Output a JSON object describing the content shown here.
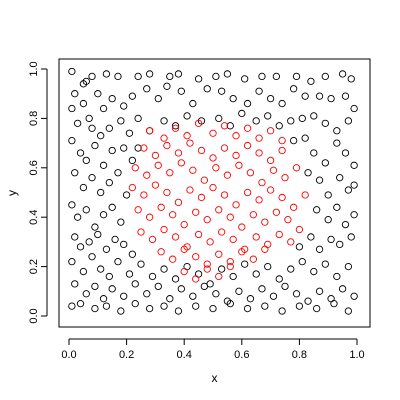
{
  "chart_data": {
    "type": "scatter",
    "xlabel": "x",
    "ylabel": "y",
    "xlim": [
      0,
      1
    ],
    "ylim": [
      0,
      1
    ],
    "x_ticks": [
      "0.0",
      "0.2",
      "0.4",
      "0.6",
      "0.8",
      "1.0"
    ],
    "y_ticks": [
      "0.0",
      "0.2",
      "0.4",
      "0.6",
      "0.8",
      "1.0"
    ],
    "grid": false,
    "legend": "none",
    "marker": "open-circle",
    "series": [
      {
        "color": "#000000",
        "points": [
          [
            0.01,
            0.99
          ],
          [
            0.05,
            0.94
          ],
          [
            0.06,
            0.95
          ],
          [
            0.08,
            0.97
          ],
          [
            0.13,
            0.98
          ],
          [
            0.17,
            0.97
          ],
          [
            0.24,
            0.97
          ],
          [
            0.28,
            0.98
          ],
          [
            0.35,
            0.97
          ],
          [
            0.38,
            0.98
          ],
          [
            0.45,
            0.96
          ],
          [
            0.51,
            0.97
          ],
          [
            0.55,
            0.98
          ],
          [
            0.61,
            0.96
          ],
          [
            0.67,
            0.97
          ],
          [
            0.72,
            0.97
          ],
          [
            0.79,
            0.97
          ],
          [
            0.84,
            0.95
          ],
          [
            0.89,
            0.97
          ],
          [
            0.95,
            0.98
          ],
          [
            0.98,
            0.96
          ],
          [
            0.02,
            0.9
          ],
          [
            0.05,
            0.86
          ],
          [
            0.07,
            0.8
          ],
          [
            0.1,
            0.9
          ],
          [
            0.12,
            0.84
          ],
          [
            0.15,
            0.88
          ],
          [
            0.19,
            0.85
          ],
          [
            0.22,
            0.89
          ],
          [
            0.27,
            0.92
          ],
          [
            0.31,
            0.88
          ],
          [
            0.34,
            0.93
          ],
          [
            0.39,
            0.91
          ],
          [
            0.43,
            0.86
          ],
          [
            0.48,
            0.92
          ],
          [
            0.53,
            0.91
          ],
          [
            0.57,
            0.88
          ],
          [
            0.62,
            0.86
          ],
          [
            0.66,
            0.91
          ],
          [
            0.7,
            0.88
          ],
          [
            0.74,
            0.86
          ],
          [
            0.78,
            0.92
          ],
          [
            0.82,
            0.89
          ],
          [
            0.87,
            0.89
          ],
          [
            0.91,
            0.88
          ],
          [
            0.96,
            0.89
          ],
          [
            0.99,
            0.84
          ],
          [
            0.01,
            0.84
          ],
          [
            0.03,
            0.78
          ],
          [
            0.08,
            0.76
          ],
          [
            0.11,
            0.73
          ],
          [
            0.14,
            0.76
          ],
          [
            0.18,
            0.79
          ],
          [
            0.21,
            0.74
          ],
          [
            0.24,
            0.8
          ],
          [
            0.28,
            0.75
          ],
          [
            0.33,
            0.79
          ],
          [
            0.37,
            0.77
          ],
          [
            0.41,
            0.81
          ],
          [
            0.46,
            0.79
          ],
          [
            0.52,
            0.8
          ],
          [
            0.56,
            0.77
          ],
          [
            0.6,
            0.82
          ],
          [
            0.65,
            0.79
          ],
          [
            0.69,
            0.81
          ],
          [
            0.73,
            0.77
          ],
          [
            0.77,
            0.79
          ],
          [
            0.81,
            0.8
          ],
          [
            0.85,
            0.81
          ],
          [
            0.89,
            0.78
          ],
          [
            0.93,
            0.75
          ],
          [
            0.97,
            0.79
          ],
          [
            0.01,
            0.71
          ],
          [
            0.04,
            0.66
          ],
          [
            0.06,
            0.63
          ],
          [
            0.09,
            0.69
          ],
          [
            0.12,
            0.61
          ],
          [
            0.15,
            0.67
          ],
          [
            0.19,
            0.68
          ],
          [
            0.22,
            0.63
          ],
          [
            0.24,
            0.68
          ],
          [
            0.78,
            0.71
          ],
          [
            0.82,
            0.72
          ],
          [
            0.85,
            0.66
          ],
          [
            0.89,
            0.62
          ],
          [
            0.93,
            0.7
          ],
          [
            0.96,
            0.66
          ],
          [
            0.99,
            0.61
          ],
          [
            0.02,
            0.58
          ],
          [
            0.05,
            0.52
          ],
          [
            0.08,
            0.56
          ],
          [
            0.11,
            0.5
          ],
          [
            0.14,
            0.54
          ],
          [
            0.17,
            0.58
          ],
          [
            0.2,
            0.49
          ],
          [
            0.83,
            0.58
          ],
          [
            0.87,
            0.55
          ],
          [
            0.9,
            0.49
          ],
          [
            0.94,
            0.56
          ],
          [
            0.97,
            0.51
          ],
          [
            0.99,
            0.53
          ],
          [
            0.01,
            0.45
          ],
          [
            0.03,
            0.4
          ],
          [
            0.06,
            0.43
          ],
          [
            0.09,
            0.36
          ],
          [
            0.12,
            0.41
          ],
          [
            0.15,
            0.44
          ],
          [
            0.18,
            0.38
          ],
          [
            0.86,
            0.43
          ],
          [
            0.9,
            0.39
          ],
          [
            0.93,
            0.44
          ],
          [
            0.96,
            0.37
          ],
          [
            0.99,
            0.41
          ],
          [
            0.02,
            0.32
          ],
          [
            0.04,
            0.28
          ],
          [
            0.07,
            0.3
          ],
          [
            0.1,
            0.33
          ],
          [
            0.13,
            0.27
          ],
          [
            0.16,
            0.31
          ],
          [
            0.19,
            0.29
          ],
          [
            0.22,
            0.25
          ],
          [
            0.8,
            0.28
          ],
          [
            0.84,
            0.32
          ],
          [
            0.87,
            0.27
          ],
          [
            0.91,
            0.31
          ],
          [
            0.94,
            0.29
          ],
          [
            0.98,
            0.32
          ],
          [
            0.01,
            0.22
          ],
          [
            0.05,
            0.18
          ],
          [
            0.08,
            0.24
          ],
          [
            0.11,
            0.19
          ],
          [
            0.14,
            0.16
          ],
          [
            0.17,
            0.22
          ],
          [
            0.21,
            0.17
          ],
          [
            0.25,
            0.21
          ],
          [
            0.29,
            0.16
          ],
          [
            0.33,
            0.19
          ],
          [
            0.37,
            0.15
          ],
          [
            0.41,
            0.2
          ],
          [
            0.45,
            0.17
          ],
          [
            0.49,
            0.13
          ],
          [
            0.53,
            0.19
          ],
          [
            0.57,
            0.16
          ],
          [
            0.61,
            0.21
          ],
          [
            0.65,
            0.17
          ],
          [
            0.69,
            0.2
          ],
          [
            0.73,
            0.15
          ],
          [
            0.77,
            0.19
          ],
          [
            0.81,
            0.22
          ],
          [
            0.85,
            0.18
          ],
          [
            0.89,
            0.21
          ],
          [
            0.93,
            0.16
          ],
          [
            0.97,
            0.2
          ],
          [
            0.02,
            0.13
          ],
          [
            0.06,
            0.09
          ],
          [
            0.09,
            0.12
          ],
          [
            0.12,
            0.07
          ],
          [
            0.15,
            0.11
          ],
          [
            0.19,
            0.08
          ],
          [
            0.23,
            0.13
          ],
          [
            0.27,
            0.09
          ],
          [
            0.31,
            0.12
          ],
          [
            0.35,
            0.07
          ],
          [
            0.39,
            0.11
          ],
          [
            0.43,
            0.08
          ],
          [
            0.47,
            0.12
          ],
          [
            0.51,
            0.09
          ],
          [
            0.55,
            0.06
          ],
          [
            0.59,
            0.1
          ],
          [
            0.63,
            0.07
          ],
          [
            0.67,
            0.11
          ],
          [
            0.71,
            0.08
          ],
          [
            0.75,
            0.12
          ],
          [
            0.79,
            0.09
          ],
          [
            0.83,
            0.06
          ],
          [
            0.87,
            0.1
          ],
          [
            0.91,
            0.07
          ],
          [
            0.95,
            0.11
          ],
          [
            0.99,
            0.08
          ],
          [
            0.01,
            0.04
          ],
          [
            0.04,
            0.05
          ],
          [
            0.09,
            0.03
          ],
          [
            0.13,
            0.04
          ],
          [
            0.18,
            0.02
          ],
          [
            0.23,
            0.05
          ],
          [
            0.28,
            0.03
          ],
          [
            0.33,
            0.04
          ],
          [
            0.38,
            0.02
          ],
          [
            0.44,
            0.04
          ],
          [
            0.5,
            0.03
          ],
          [
            0.56,
            0.05
          ],
          [
            0.62,
            0.03
          ],
          [
            0.68,
            0.04
          ],
          [
            0.74,
            0.02
          ],
          [
            0.8,
            0.04
          ],
          [
            0.86,
            0.03
          ],
          [
            0.92,
            0.05
          ],
          [
            0.97,
            0.02
          ]
        ]
      },
      {
        "color": "#ff0000",
        "points": [
          [
            0.28,
            0.75
          ],
          [
            0.33,
            0.72
          ],
          [
            0.37,
            0.76
          ],
          [
            0.41,
            0.73
          ],
          [
            0.45,
            0.78
          ],
          [
            0.5,
            0.74
          ],
          [
            0.54,
            0.77
          ],
          [
            0.58,
            0.73
          ],
          [
            0.62,
            0.76
          ],
          [
            0.66,
            0.72
          ],
          [
            0.7,
            0.75
          ],
          [
            0.74,
            0.71
          ],
          [
            0.26,
            0.68
          ],
          [
            0.3,
            0.65
          ],
          [
            0.34,
            0.69
          ],
          [
            0.38,
            0.66
          ],
          [
            0.42,
            0.7
          ],
          [
            0.46,
            0.67
          ],
          [
            0.5,
            0.64
          ],
          [
            0.54,
            0.68
          ],
          [
            0.58,
            0.65
          ],
          [
            0.62,
            0.69
          ],
          [
            0.66,
            0.66
          ],
          [
            0.7,
            0.63
          ],
          [
            0.74,
            0.67
          ],
          [
            0.23,
            0.6
          ],
          [
            0.27,
            0.57
          ],
          [
            0.31,
            0.61
          ],
          [
            0.35,
            0.58
          ],
          [
            0.39,
            0.62
          ],
          [
            0.43,
            0.59
          ],
          [
            0.47,
            0.55
          ],
          [
            0.51,
            0.6
          ],
          [
            0.55,
            0.57
          ],
          [
            0.59,
            0.61
          ],
          [
            0.63,
            0.58
          ],
          [
            0.67,
            0.54
          ],
          [
            0.71,
            0.59
          ],
          [
            0.75,
            0.56
          ],
          [
            0.79,
            0.6
          ],
          [
            0.22,
            0.52
          ],
          [
            0.26,
            0.49
          ],
          [
            0.3,
            0.53
          ],
          [
            0.34,
            0.5
          ],
          [
            0.38,
            0.46
          ],
          [
            0.42,
            0.51
          ],
          [
            0.46,
            0.48
          ],
          [
            0.5,
            0.52
          ],
          [
            0.54,
            0.49
          ],
          [
            0.58,
            0.45
          ],
          [
            0.62,
            0.5
          ],
          [
            0.66,
            0.47
          ],
          [
            0.7,
            0.51
          ],
          [
            0.74,
            0.48
          ],
          [
            0.78,
            0.44
          ],
          [
            0.82,
            0.49
          ],
          [
            0.24,
            0.43
          ],
          [
            0.28,
            0.4
          ],
          [
            0.32,
            0.44
          ],
          [
            0.36,
            0.41
          ],
          [
            0.4,
            0.37
          ],
          [
            0.44,
            0.42
          ],
          [
            0.48,
            0.39
          ],
          [
            0.52,
            0.43
          ],
          [
            0.56,
            0.4
          ],
          [
            0.6,
            0.36
          ],
          [
            0.64,
            0.41
          ],
          [
            0.68,
            0.38
          ],
          [
            0.72,
            0.42
          ],
          [
            0.76,
            0.39
          ],
          [
            0.8,
            0.35
          ],
          [
            0.25,
            0.34
          ],
          [
            0.29,
            0.31
          ],
          [
            0.33,
            0.35
          ],
          [
            0.37,
            0.32
          ],
          [
            0.41,
            0.28
          ],
          [
            0.45,
            0.33
          ],
          [
            0.49,
            0.3
          ],
          [
            0.53,
            0.34
          ],
          [
            0.57,
            0.31
          ],
          [
            0.61,
            0.27
          ],
          [
            0.65,
            0.32
          ],
          [
            0.69,
            0.29
          ],
          [
            0.73,
            0.33
          ],
          [
            0.77,
            0.3
          ],
          [
            0.32,
            0.26
          ],
          [
            0.36,
            0.23
          ],
          [
            0.4,
            0.27
          ],
          [
            0.44,
            0.24
          ],
          [
            0.48,
            0.21
          ],
          [
            0.52,
            0.25
          ],
          [
            0.56,
            0.22
          ],
          [
            0.6,
            0.26
          ],
          [
            0.64,
            0.23
          ],
          [
            0.68,
            0.27
          ],
          [
            0.4,
            0.18
          ],
          [
            0.44,
            0.15
          ],
          [
            0.48,
            0.19
          ],
          [
            0.52,
            0.16
          ],
          [
            0.56,
            0.2
          ]
        ]
      }
    ]
  }
}
